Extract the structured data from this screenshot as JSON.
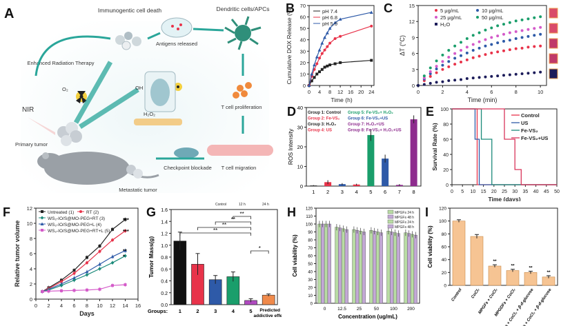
{
  "panel_letters": {
    "A": "A",
    "B": "B",
    "C": "C",
    "D": "D",
    "E": "E",
    "F": "F",
    "G": "G",
    "H": "H",
    "I": "I"
  },
  "panel_a": {
    "labels": {
      "icd": "Immunogentic cell death",
      "dc": "Dendritic cells/APCs",
      "ert": "Enhanced Radiation Therapy",
      "antigens": "Antigens released",
      "nir": "NIR",
      "o2": "O₂",
      "oh": "OH",
      "h2o2": "H₂O₂",
      "tcp": "T cell proliferation",
      "primary": "Primary tumor",
      "checkpoint": "Checkpoint blockade",
      "tcm": "T cell migration",
      "metastatic": "Metastatic tumor"
    }
  },
  "colors": {
    "black": "#222222",
    "red": "#e8334a",
    "blue": "#2e5aa8",
    "green": "#1a9e6b",
    "purple": "#8e2c8e",
    "teal": "#1b8a7a",
    "orange": "#f0a46a",
    "magenta": "#d45ac9"
  },
  "chart_data": [
    {
      "panel": "B",
      "type": "line",
      "ylabel": "Cumulative DOX Release (%)",
      "xlabel": "Time (h)",
      "xlim": [
        0,
        25
      ],
      "ylim": [
        0,
        70
      ],
      "xticks": [
        0,
        4,
        8,
        12,
        16,
        20,
        24
      ],
      "yticks": [
        0,
        10,
        20,
        30,
        40,
        50,
        60,
        70
      ],
      "x": [
        0,
        1,
        2,
        3,
        4,
        5,
        6,
        7,
        8,
        10,
        12,
        24
      ],
      "legend": "top-left",
      "series": [
        {
          "name": "pH 7.4",
          "color": "#222222",
          "values": [
            0,
            4,
            7,
            10,
            12,
            14,
            16,
            17,
            18,
            19,
            20,
            22
          ]
        },
        {
          "name": "pH 6.8",
          "color": "#e8334a",
          "values": [
            0,
            8,
            14,
            19,
            24,
            28,
            31,
            34,
            37,
            41,
            43,
            52
          ]
        },
        {
          "name": "pH 5.0",
          "color": "#2e5aa8",
          "values": [
            0,
            10,
            18,
            25,
            31,
            37,
            42,
            46,
            50,
            55,
            58,
            64
          ]
        }
      ]
    },
    {
      "panel": "C",
      "type": "line",
      "ylabel": "ΔT (°C)",
      "xlabel": "Time (min)",
      "xlim": [
        0,
        10.5
      ],
      "ylim": [
        0,
        15
      ],
      "xticks": [
        0,
        2,
        4,
        6,
        8,
        10
      ],
      "yticks": [
        0,
        3,
        6,
        9,
        12,
        15
      ],
      "x": [
        0,
        0.5,
        1,
        1.5,
        2,
        2.5,
        3,
        3.5,
        4,
        4.5,
        5,
        5.5,
        6,
        6.5,
        7,
        7.5,
        8,
        8.5,
        9,
        9.5,
        10
      ],
      "legend": "top",
      "series": [
        {
          "name": "5 μg/mL",
          "color": "#e8334a",
          "values": [
            0,
            0.9,
            1.7,
            2.4,
            3.0,
            3.5,
            4.0,
            4.4,
            4.8,
            5.2,
            5.5,
            5.8,
            6.1,
            6.3,
            6.5,
            6.7,
            6.9,
            7.0,
            7.2,
            7.3,
            7.4
          ]
        },
        {
          "name": "10 μg/mL",
          "color": "#2e5aa8",
          "values": [
            0,
            1.2,
            2.2,
            3.1,
            3.8,
            4.5,
            5.1,
            5.6,
            6.1,
            6.6,
            7.0,
            7.4,
            7.7,
            8.0,
            8.3,
            8.5,
            8.8,
            9.0,
            9.2,
            9.4,
            9.6
          ]
        },
        {
          "name": "25 μg/mL",
          "color": "#d45ac9",
          "values": [
            0,
            1.4,
            2.6,
            3.6,
            4.5,
            5.3,
            6.0,
            6.6,
            7.2,
            7.7,
            8.2,
            8.6,
            9.0,
            9.3,
            9.6,
            9.9,
            10.1,
            10.3,
            10.5,
            10.7,
            10.9
          ]
        },
        {
          "name": "50 μg/mL",
          "color": "#1a9e6b",
          "values": [
            0,
            1.8,
            3.3,
            4.6,
            5.7,
            6.6,
            7.4,
            8.1,
            8.8,
            9.4,
            9.9,
            10.4,
            10.8,
            11.2,
            11.5,
            11.8,
            12.1,
            12.3,
            12.5,
            12.7,
            12.9
          ]
        },
        {
          "name": "H₂O",
          "color": "#1c1c5a",
          "values": [
            0,
            0.2,
            0.4,
            0.6,
            0.7,
            0.9,
            1.0,
            1.1,
            1.3,
            1.4,
            1.5,
            1.6,
            1.7,
            1.8,
            1.9,
            2.0,
            2.1,
            2.2,
            2.3,
            2.4,
            2.5
          ]
        }
      ]
    },
    {
      "panel": "D",
      "type": "bar",
      "ylabel": "ROS Intensity",
      "categories": [
        "1",
        "2",
        "3",
        "4",
        "5",
        "6",
        "7",
        "8"
      ],
      "values": [
        0.3,
        2.0,
        1.0,
        0.8,
        26,
        14,
        0.6,
        34
      ],
      "errors": [
        0.2,
        1.0,
        0.5,
        0.4,
        3,
        2,
        0.4,
        2
      ],
      "colors": [
        "#222222",
        "#e8334a",
        "#2e5aa8",
        "#e8334a",
        "#1a9e6b",
        "#2e5aa8",
        "#8e2c8e",
        "#8e2c8e"
      ],
      "ylim": [
        0,
        40
      ],
      "yticks": [
        0,
        10,
        20,
        30,
        40
      ],
      "legend": [
        {
          "text": "Group 1: Control",
          "color": "#222222"
        },
        {
          "text": "Group 2: Fe-VS₂",
          "color": "#e8334a"
        },
        {
          "text": "Group 3: H₂O₂",
          "color": "#222222"
        },
        {
          "text": "Group 4: US",
          "color": "#e8334a"
        },
        {
          "text": "Group 5: Fe-VS₂+ H₂O₂",
          "color": "#1a9e6b"
        },
        {
          "text": "Group 6: Fe-VS₂+US",
          "color": "#2e5aa8"
        },
        {
          "text": "Group 7: H₂O₂+US",
          "color": "#8e2c8e"
        },
        {
          "text": "Group 8: Fe-VS₂+ H₂O₂+US",
          "color": "#8e2c8e"
        }
      ]
    },
    {
      "panel": "E",
      "type": "line",
      "ylabel": "Survival Rate (%)",
      "xlabel": "Time (days)",
      "xlim": [
        0,
        50
      ],
      "ylim": [
        0,
        100
      ],
      "xticks": [
        0,
        5,
        10,
        15,
        20,
        25,
        30,
        35,
        40,
        45,
        50
      ],
      "yticks": [
        0,
        20,
        40,
        60,
        80,
        100
      ],
      "legend": "right",
      "series": [
        {
          "name": "Control",
          "color": "#e8334a",
          "steps": [
            [
              0,
              100
            ],
            [
              12,
              100
            ],
            [
              12,
              0
            ],
            [
              50,
              0
            ]
          ]
        },
        {
          "name": "US",
          "color": "#2e5aa8",
          "steps": [
            [
              0,
              100
            ],
            [
              11,
              100
            ],
            [
              11,
              60
            ],
            [
              13,
              60
            ],
            [
              13,
              0
            ],
            [
              50,
              0
            ]
          ]
        },
        {
          "name": "Fe-VS₂",
          "color": "#1b8a7a",
          "steps": [
            [
              0,
              100
            ],
            [
              14,
              100
            ],
            [
              14,
              60
            ],
            [
              19,
              60
            ],
            [
              19,
              0
            ],
            [
              50,
              0
            ]
          ]
        },
        {
          "name": "Fe-VS₂+US",
          "color": "#d9345a",
          "steps": [
            [
              0,
              100
            ],
            [
              25,
              100
            ],
            [
              25,
              60
            ],
            [
              30,
              60
            ],
            [
              30,
              20
            ],
            [
              33,
              20
            ],
            [
              33,
              0
            ],
            [
              50,
              0
            ]
          ]
        }
      ]
    },
    {
      "panel": "F",
      "type": "line",
      "ylabel": "Relative tumor volume",
      "xlabel": "Days",
      "xlim": [
        0,
        16
      ],
      "ylim": [
        0,
        12
      ],
      "xticks": [
        0,
        2,
        4,
        6,
        8,
        10,
        12,
        14,
        16
      ],
      "yticks": [
        0,
        2,
        4,
        6,
        8,
        10,
        12
      ],
      "x": [
        1,
        2,
        4,
        6,
        8,
        10,
        12,
        14
      ],
      "legend": "top-left",
      "series": [
        {
          "name": "Untreated (1)",
          "color": "#222222",
          "values": [
            1.0,
            1.5,
            2.5,
            3.8,
            5.5,
            7.0,
            9.2,
            10.5
          ],
          "sig": "***"
        },
        {
          "name": "RT (2)",
          "color": "#e8334a",
          "values": [
            1.0,
            1.4,
            2.3,
            3.4,
            4.8,
            6.3,
            7.8,
            9.0
          ],
          "sig": "***"
        },
        {
          "name": "WS₂-IO/S@MO-PEG+L (4)",
          "color": "#2e5aa8",
          "values": [
            1.0,
            1.3,
            2.0,
            2.8,
            3.6,
            4.6,
            5.6,
            6.4
          ],
          "sig": "**"
        },
        {
          "name": "WS₂-IO/S@MO-PEG+RT (3)",
          "color": "#1b8a7a",
          "values": [
            1.0,
            1.2,
            1.8,
            2.5,
            3.2,
            4.0,
            4.8,
            5.7
          ],
          "sig": "*"
        },
        {
          "name": "WS₂-IO/S@MO-PEG+RT+L (5)",
          "color": "#d45ac9",
          "values": [
            1.0,
            1.05,
            1.1,
            1.15,
            1.2,
            1.3,
            1.8,
            1.9
          ],
          "sig": ""
        }
      ],
      "legend_order": [
        "Untreated (1)",
        "RT (2)",
        "WS₂-IO/S@MO-PEG+RT (3)",
        "WS₂-IO/S@MO-PEG+L (4)",
        "WS₂-IO/S@MO-PEG+RT+L (5)"
      ]
    },
    {
      "panel": "G",
      "type": "bar",
      "ylabel": "Tumor Mass(g)",
      "xlabel": "Groups:",
      "categories": [
        "1",
        "2",
        "3",
        "4",
        "5",
        "Predicted addictive effect"
      ],
      "values": [
        1.07,
        0.68,
        0.42,
        0.47,
        0.07,
        0.16
      ],
      "errors": [
        0.15,
        0.18,
        0.07,
        0.08,
        0.03,
        0.02
      ],
      "colors": [
        "#111111",
        "#e8334a",
        "#2e5aa8",
        "#1a9e6b",
        "#b04ac0",
        "#f08a4b"
      ],
      "ylim": [
        0,
        1.6
      ],
      "yticks": [
        0.0,
        0.2,
        0.4,
        0.6,
        0.8,
        1.0,
        1.2,
        1.4,
        1.6
      ],
      "header": [
        "Control",
        "12 h",
        "24 h"
      ],
      "sig": [
        "**",
        "**",
        "**",
        "**",
        "*"
      ]
    },
    {
      "panel": "H",
      "type": "bar",
      "ylabel": "Cell viability (%)",
      "xlabel": "Concentration (ug/mL)",
      "categories": [
        "0",
        "12.5",
        "25",
        "50",
        "100",
        "200"
      ],
      "ylim": [
        0,
        120
      ],
      "yticks": [
        0,
        10,
        20,
        30,
        40,
        50,
        60,
        70,
        80,
        90,
        100,
        110,
        120
      ],
      "series": [
        {
          "name": "MPGFs 24 h",
          "color": "#b9dca4",
          "values": [
            100,
            96,
            93,
            92,
            91,
            89
          ]
        },
        {
          "name": "MPGFs 48 h",
          "color": "#c3a9d6",
          "values": [
            100,
            95,
            92,
            91,
            90,
            88
          ]
        },
        {
          "name": "MPGFs 24 h",
          "color": "#b9dca4",
          "values": [
            100,
            94,
            91,
            90,
            89,
            87
          ]
        },
        {
          "name": "MPGFs 48 h",
          "color": "#c3a9d6",
          "values": [
            100,
            93,
            90,
            89,
            88,
            86
          ]
        }
      ]
    },
    {
      "panel": "I",
      "type": "bar",
      "ylabel": "Cell viability (%)",
      "categories": [
        "Control",
        "CoCl₂",
        "MPGFs + CoCl₂",
        "MPGDFs + CoCl₂",
        "MPGFs + CoCl₂ + β-d-glucose",
        "MPGDFs + CoCl₂ + β-d-glucose"
      ],
      "values": [
        100,
        76,
        30,
        23,
        20,
        13
      ],
      "errors": [
        2,
        3,
        2,
        2,
        2,
        2
      ],
      "sig": [
        "",
        "",
        "**",
        "**",
        "**",
        "**"
      ],
      "color": "#f6c493",
      "edge": "#c98a4a",
      "ylim": [
        0,
        120
      ],
      "yticks": [
        0,
        20,
        40,
        60,
        80,
        100,
        120
      ]
    }
  ]
}
